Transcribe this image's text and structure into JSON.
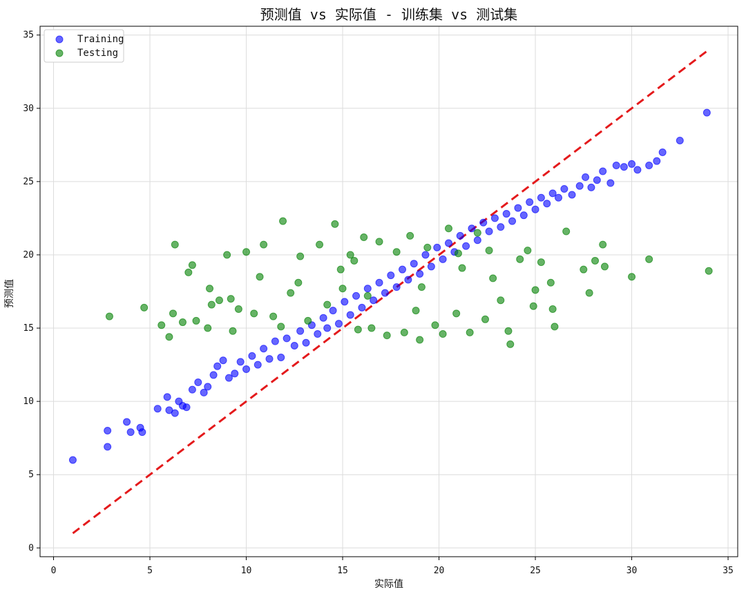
{
  "chart_data": {
    "type": "scatter",
    "title": "预测值 vs 实际值 - 训练集 vs 测试集",
    "xlabel": "实际值",
    "ylabel": "预测值",
    "xlim": [
      -0.7,
      35.5
    ],
    "ylim": [
      -0.6,
      35.6
    ],
    "xticks": [
      0,
      5,
      10,
      15,
      20,
      25,
      30,
      35
    ],
    "yticks": [
      0,
      5,
      10,
      15,
      20,
      25,
      30,
      35
    ],
    "grid": true,
    "legend": "top-left",
    "colors": {
      "Training": "#0000ff",
      "Testing": "#008000",
      "ideal_line": "#e41a1c"
    },
    "series": [
      {
        "name": "Training",
        "points": [
          [
            1.0,
            6.0
          ],
          [
            2.8,
            8.0
          ],
          [
            2.8,
            6.9
          ],
          [
            3.8,
            8.6
          ],
          [
            4.0,
            7.9
          ],
          [
            4.5,
            8.2
          ],
          [
            4.6,
            7.9
          ],
          [
            5.4,
            9.5
          ],
          [
            5.9,
            10.3
          ],
          [
            6.0,
            9.4
          ],
          [
            6.3,
            9.2
          ],
          [
            6.5,
            10.0
          ],
          [
            6.7,
            9.7
          ],
          [
            6.9,
            9.6
          ],
          [
            7.2,
            10.8
          ],
          [
            7.5,
            11.3
          ],
          [
            7.8,
            10.6
          ],
          [
            8.0,
            11.0
          ],
          [
            8.3,
            11.8
          ],
          [
            8.5,
            12.4
          ],
          [
            8.8,
            12.8
          ],
          [
            9.1,
            11.6
          ],
          [
            9.4,
            11.9
          ],
          [
            9.7,
            12.7
          ],
          [
            10.0,
            12.2
          ],
          [
            10.3,
            13.1
          ],
          [
            10.6,
            12.5
          ],
          [
            10.9,
            13.6
          ],
          [
            11.2,
            12.9
          ],
          [
            11.5,
            14.1
          ],
          [
            11.8,
            13.0
          ],
          [
            12.1,
            14.3
          ],
          [
            12.5,
            13.8
          ],
          [
            12.8,
            14.8
          ],
          [
            13.1,
            14.0
          ],
          [
            13.4,
            15.2
          ],
          [
            13.7,
            14.6
          ],
          [
            14.0,
            15.7
          ],
          [
            14.2,
            15.0
          ],
          [
            14.5,
            16.2
          ],
          [
            14.8,
            15.3
          ],
          [
            15.1,
            16.8
          ],
          [
            15.4,
            15.9
          ],
          [
            15.7,
            17.2
          ],
          [
            16.0,
            16.4
          ],
          [
            16.3,
            17.7
          ],
          [
            16.6,
            16.9
          ],
          [
            16.9,
            18.1
          ],
          [
            17.2,
            17.4
          ],
          [
            17.5,
            18.6
          ],
          [
            17.8,
            17.8
          ],
          [
            18.1,
            19.0
          ],
          [
            18.4,
            18.3
          ],
          [
            18.7,
            19.4
          ],
          [
            19.0,
            18.7
          ],
          [
            19.3,
            20.0
          ],
          [
            19.6,
            19.2
          ],
          [
            19.9,
            20.5
          ],
          [
            20.2,
            19.7
          ],
          [
            20.5,
            20.8
          ],
          [
            20.8,
            20.2
          ],
          [
            21.1,
            21.3
          ],
          [
            21.4,
            20.6
          ],
          [
            21.7,
            21.8
          ],
          [
            22.0,
            21.0
          ],
          [
            22.3,
            22.2
          ],
          [
            22.6,
            21.6
          ],
          [
            22.9,
            22.5
          ],
          [
            23.2,
            21.9
          ],
          [
            23.5,
            22.8
          ],
          [
            23.8,
            22.3
          ],
          [
            24.1,
            23.2
          ],
          [
            24.4,
            22.7
          ],
          [
            24.7,
            23.6
          ],
          [
            25.0,
            23.1
          ],
          [
            25.3,
            23.9
          ],
          [
            25.6,
            23.5
          ],
          [
            25.9,
            24.2
          ],
          [
            26.2,
            23.9
          ],
          [
            26.5,
            24.5
          ],
          [
            26.9,
            24.1
          ],
          [
            27.3,
            24.7
          ],
          [
            27.6,
            25.3
          ],
          [
            27.9,
            24.6
          ],
          [
            28.2,
            25.1
          ],
          [
            28.5,
            25.7
          ],
          [
            28.9,
            24.9
          ],
          [
            29.2,
            26.1
          ],
          [
            29.6,
            26.0
          ],
          [
            30.0,
            26.2
          ],
          [
            30.3,
            25.8
          ],
          [
            30.9,
            26.1
          ],
          [
            31.3,
            26.4
          ],
          [
            31.6,
            27.0
          ],
          [
            32.5,
            27.8
          ],
          [
            33.9,
            29.7
          ]
        ]
      },
      {
        "name": "Testing",
        "points": [
          [
            2.9,
            15.8
          ],
          [
            4.7,
            16.4
          ],
          [
            5.6,
            15.2
          ],
          [
            6.0,
            14.4
          ],
          [
            6.2,
            16.0
          ],
          [
            6.3,
            20.7
          ],
          [
            6.7,
            15.4
          ],
          [
            7.2,
            19.3
          ],
          [
            7.0,
            18.8
          ],
          [
            7.4,
            15.5
          ],
          [
            8.0,
            15.0
          ],
          [
            8.1,
            17.7
          ],
          [
            8.2,
            16.6
          ],
          [
            8.6,
            16.9
          ],
          [
            9.0,
            20.0
          ],
          [
            9.3,
            14.8
          ],
          [
            9.6,
            16.3
          ],
          [
            10.0,
            20.2
          ],
          [
            10.4,
            16.0
          ],
          [
            10.9,
            20.7
          ],
          [
            11.4,
            15.8
          ],
          [
            11.9,
            22.3
          ],
          [
            12.3,
            17.4
          ],
          [
            12.8,
            19.9
          ],
          [
            13.2,
            15.5
          ],
          [
            13.8,
            20.7
          ],
          [
            14.2,
            16.6
          ],
          [
            14.6,
            22.1
          ],
          [
            15.0,
            17.7
          ],
          [
            15.4,
            20.0
          ],
          [
            15.8,
            14.9
          ],
          [
            16.1,
            21.2
          ],
          [
            16.5,
            15.0
          ],
          [
            16.9,
            20.9
          ],
          [
            17.3,
            14.5
          ],
          [
            17.8,
            20.2
          ],
          [
            18.2,
            14.7
          ],
          [
            18.5,
            21.3
          ],
          [
            19.0,
            14.2
          ],
          [
            19.4,
            20.5
          ],
          [
            19.8,
            15.2
          ],
          [
            20.2,
            14.6
          ],
          [
            20.5,
            21.8
          ],
          [
            20.9,
            16.0
          ],
          [
            21.2,
            19.1
          ],
          [
            21.6,
            14.7
          ],
          [
            22.0,
            21.5
          ],
          [
            22.4,
            15.6
          ],
          [
            22.8,
            18.4
          ],
          [
            23.2,
            16.9
          ],
          [
            23.6,
            14.8
          ],
          [
            23.7,
            13.9
          ],
          [
            24.2,
            19.7
          ],
          [
            24.6,
            20.3
          ],
          [
            25.0,
            17.6
          ],
          [
            25.3,
            19.5
          ],
          [
            25.8,
            18.1
          ],
          [
            25.9,
            16.3
          ],
          [
            26.0,
            15.1
          ],
          [
            26.6,
            21.6
          ],
          [
            27.5,
            19.0
          ],
          [
            27.8,
            17.4
          ],
          [
            28.1,
            19.6
          ],
          [
            28.5,
            20.7
          ],
          [
            28.6,
            19.2
          ],
          [
            30.0,
            18.5
          ],
          [
            30.9,
            19.7
          ],
          [
            34.0,
            18.9
          ],
          [
            14.9,
            19.0
          ],
          [
            16.3,
            17.2
          ],
          [
            18.8,
            16.2
          ],
          [
            21.0,
            20.1
          ],
          [
            12.7,
            18.1
          ],
          [
            10.7,
            18.5
          ],
          [
            9.2,
            17.0
          ],
          [
            15.6,
            19.6
          ],
          [
            19.1,
            17.8
          ],
          [
            22.6,
            20.3
          ],
          [
            24.9,
            16.5
          ],
          [
            11.8,
            15.1
          ]
        ]
      }
    ],
    "reference_line": {
      "label": "",
      "x": [
        1,
        34
      ],
      "y": [
        1,
        34
      ]
    }
  }
}
